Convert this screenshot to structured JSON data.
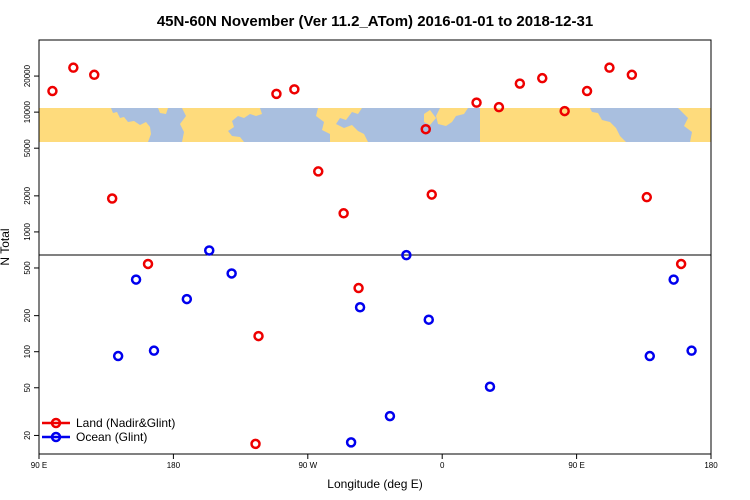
{
  "chart_data": {
    "type": "scatter",
    "title": "45N-60N November (Ver 11.2_ATom)   2016-01-01 to 2018-12-31",
    "xlabel": "Longitude (deg E)",
    "ylabel": "N Total",
    "y_scale": "log",
    "xlim": [
      90,
      315
    ],
    "ylim": [
      14,
      40000
    ],
    "x_ticks": [
      {
        "value": 90,
        "label": "90 E"
      },
      {
        "value": 135,
        "label": "180"
      },
      {
        "value": 180,
        "label": "90 W"
      },
      {
        "value": 225,
        "label": "0"
      },
      {
        "value": 270,
        "label": "90 E"
      },
      {
        "value": 315,
        "label": "180"
      }
    ],
    "y_ticks": [
      {
        "value": 20,
        "label": "20"
      },
      {
        "value": 50,
        "label": "50"
      },
      {
        "value": 100,
        "label": "100"
      },
      {
        "value": 200,
        "label": "200"
      },
      {
        "value": 500,
        "label": "500"
      },
      {
        "value": 1000,
        "label": "1000"
      },
      {
        "value": 2000,
        "label": "2000"
      },
      {
        "value": 5000,
        "label": "5000"
      },
      {
        "value": 10000,
        "label": "10000"
      },
      {
        "value": 20000,
        "label": "20000"
      }
    ],
    "reference_line_y": 500,
    "map_band": {
      "y_min": 4300,
      "y_max": 8700,
      "ocean_color": "#a9bfdf",
      "land_color": "#fedb7c"
    },
    "legend_position": "bottom-left",
    "series": [
      {
        "name": "Land (Nadir&Glint)",
        "color": "#ee0000",
        "points": [
          [
            94.5,
            15000
          ],
          [
            101.5,
            23500
          ],
          [
            108.5,
            20500
          ],
          [
            114.5,
            1900
          ],
          [
            126.5,
            540
          ],
          [
            162.5,
            17
          ],
          [
            163.5,
            135
          ],
          [
            169.5,
            14200
          ],
          [
            175.5,
            15500
          ],
          [
            183.5,
            3200
          ],
          [
            192.0,
            1430
          ],
          [
            197.0,
            340
          ],
          [
            219.5,
            7200
          ],
          [
            221.5,
            2050
          ],
          [
            236.5,
            12000
          ],
          [
            244.0,
            11000
          ],
          [
            251.0,
            17300
          ],
          [
            258.5,
            19200
          ],
          [
            266.0,
            10200
          ],
          [
            273.5,
            15000
          ],
          [
            281.0,
            23500
          ],
          [
            288.5,
            20500
          ],
          [
            293.5,
            1950
          ],
          [
            305.0,
            540
          ]
        ]
      },
      {
        "name": "Ocean (Glint)",
        "color": "#0000ee",
        "points": [
          [
            116.5,
            92
          ],
          [
            122.5,
            400
          ],
          [
            128.5,
            102
          ],
          [
            139.5,
            275
          ],
          [
            147.0,
            700
          ],
          [
            154.5,
            450
          ],
          [
            194.5,
            17.5
          ],
          [
            197.5,
            235
          ],
          [
            207.5,
            29
          ],
          [
            213.0,
            640
          ],
          [
            220.5,
            185
          ],
          [
            241.0,
            51
          ],
          [
            294.5,
            92
          ],
          [
            302.5,
            400
          ],
          [
            308.5,
            102
          ]
        ]
      }
    ]
  }
}
